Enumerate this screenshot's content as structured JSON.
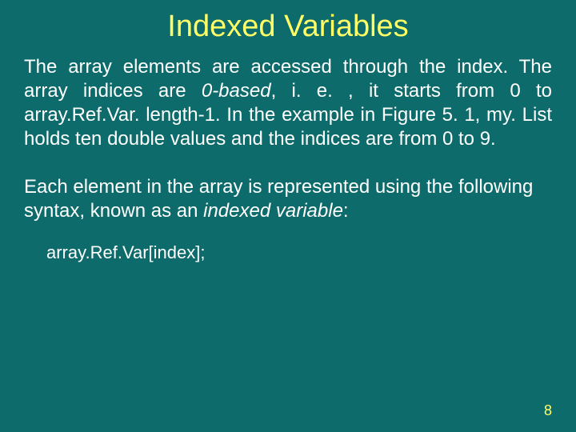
{
  "colors": {
    "background": "#0d6b6b",
    "title": "#ffff66",
    "body_text": "#ffffff",
    "page_number": "#ffff66"
  },
  "typography": {
    "title_fontsize": 38,
    "body_fontsize": 24,
    "code_fontsize": 22,
    "pagenum_fontsize": 18,
    "font_family": "Arial"
  },
  "title": "Indexed Variables",
  "p1_a": "The array elements are accessed through the index. The array indices are ",
  "p1_italic": "0-based",
  "p1_b": ", i. e. , it starts from 0 to array.Ref.Var. length-1. In the example in Figure 5. 1, my. List holds ten double values and the indices are from 0 to 9.",
  "p2_a": "Each element in the array is represented using the following syntax, known as an ",
  "p2_italic": "indexed variable",
  "p2_b": ":",
  "code_line": "array.Ref.Var[index];",
  "page_number": "8"
}
